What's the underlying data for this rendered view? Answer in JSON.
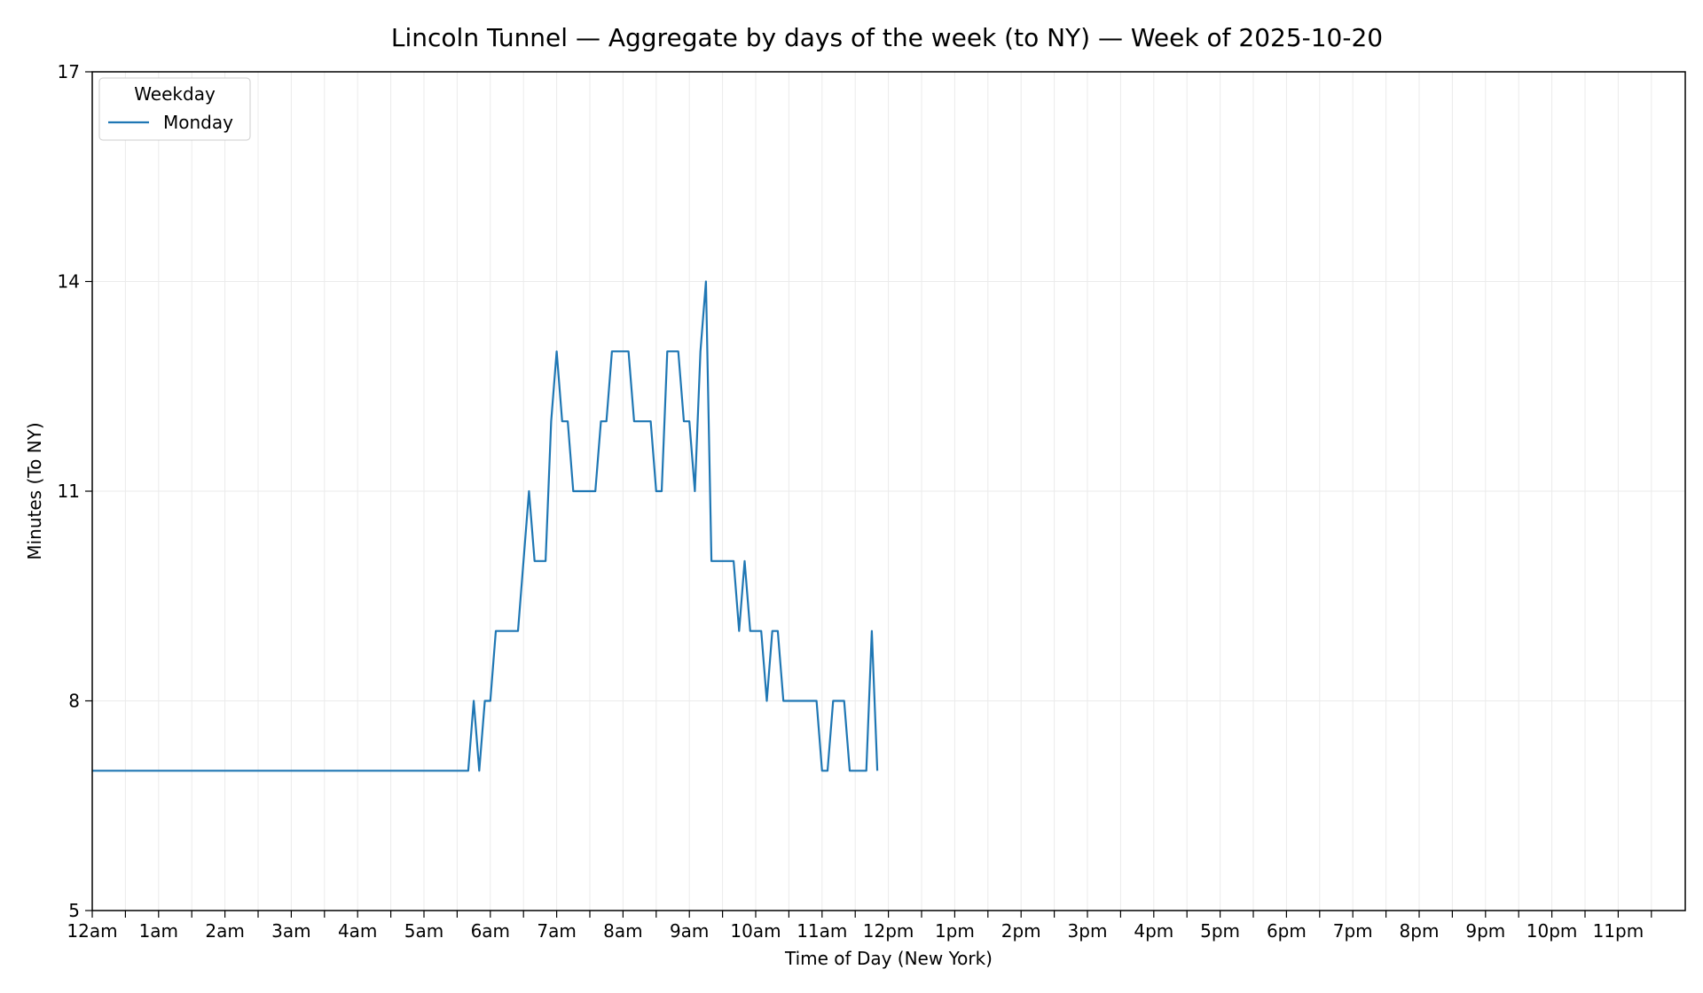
{
  "chart_data": {
    "type": "line",
    "title": "Lincoln Tunnel — Aggregate by days of the week (to NY) — Week of 2025-10-20",
    "xlabel": "Time of Day (New York)",
    "ylabel": "Minutes (To NY)",
    "ylim": [
      5,
      17
    ],
    "yticks": [
      5,
      8,
      11,
      14,
      17
    ],
    "xlim_hours": [
      0,
      24
    ],
    "xtick_labels": [
      "12am",
      "1am",
      "2am",
      "3am",
      "4am",
      "5am",
      "6am",
      "7am",
      "8am",
      "9am",
      "10am",
      "11am",
      "12pm",
      "1pm",
      "2pm",
      "3pm",
      "4pm",
      "5pm",
      "6pm",
      "7pm",
      "8pm",
      "9pm",
      "10pm",
      "11pm"
    ],
    "grid": true,
    "legend": {
      "title": "Weekday",
      "position": "top-left"
    },
    "series": [
      {
        "name": "Monday",
        "color": "#1f77b4",
        "points": [
          [
            "0:00",
            7
          ],
          [
            "5:40",
            7
          ],
          [
            "5:45",
            8
          ],
          [
            "5:50",
            7
          ],
          [
            "5:55",
            8
          ],
          [
            "6:00",
            8
          ],
          [
            "6:05",
            9
          ],
          [
            "6:25",
            9
          ],
          [
            "6:35",
            11
          ],
          [
            "6:40",
            10
          ],
          [
            "6:50",
            10
          ],
          [
            "6:55",
            12
          ],
          [
            "7:00",
            13
          ],
          [
            "7:05",
            12
          ],
          [
            "7:10",
            12
          ],
          [
            "7:15",
            11
          ],
          [
            "7:35",
            11
          ],
          [
            "7:40",
            12
          ],
          [
            "7:45",
            12
          ],
          [
            "7:50",
            13
          ],
          [
            "8:05",
            13
          ],
          [
            "8:10",
            12
          ],
          [
            "8:25",
            12
          ],
          [
            "8:30",
            11
          ],
          [
            "8:35",
            11
          ],
          [
            "8:40",
            13
          ],
          [
            "8:50",
            13
          ],
          [
            "8:55",
            12
          ],
          [
            "9:00",
            12
          ],
          [
            "9:05",
            11
          ],
          [
            "9:10",
            13
          ],
          [
            "9:15",
            14
          ],
          [
            "9:20",
            10
          ],
          [
            "9:40",
            10
          ],
          [
            "9:45",
            9
          ],
          [
            "9:50",
            10
          ],
          [
            "9:55",
            9
          ],
          [
            "10:05",
            9
          ],
          [
            "10:10",
            8
          ],
          [
            "10:15",
            9
          ],
          [
            "10:20",
            9
          ],
          [
            "10:25",
            8
          ],
          [
            "10:55",
            8
          ],
          [
            "11:00",
            7
          ],
          [
            "11:05",
            7
          ],
          [
            "11:10",
            8
          ],
          [
            "11:20",
            8
          ],
          [
            "11:25",
            7
          ],
          [
            "11:40",
            7
          ],
          [
            "11:45",
            9
          ],
          [
            "11:50",
            7
          ]
        ]
      }
    ]
  }
}
